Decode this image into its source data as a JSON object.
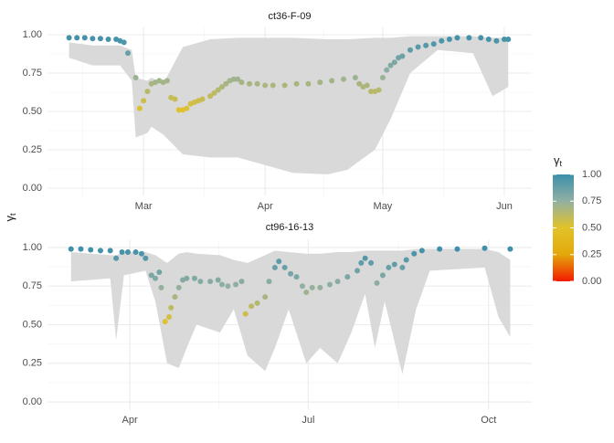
{
  "chart_data": [
    {
      "type": "scatter",
      "title": "ct36-F-09",
      "x": [
        -19,
        -17,
        -15,
        -13,
        -11,
        -9,
        -7,
        -6,
        -5,
        -4,
        -2,
        -1,
        0,
        1,
        2,
        3,
        4,
        5,
        6,
        7,
        8,
        9,
        10,
        11,
        12,
        13,
        14,
        15,
        17,
        18,
        19,
        20,
        21,
        22,
        23,
        24,
        25,
        27,
        29,
        31,
        33,
        36,
        39,
        42,
        45,
        48,
        51,
        54,
        55,
        56,
        57,
        58,
        59,
        60,
        61,
        62,
        63,
        64,
        65,
        66,
        68,
        70,
        72,
        74,
        76,
        78,
        80,
        83,
        86,
        88,
        90,
        92,
        93
      ],
      "values": [
        0.98,
        0.98,
        0.98,
        0.975,
        0.975,
        0.97,
        0.97,
        0.96,
        0.95,
        0.88,
        0.72,
        0.52,
        0.57,
        0.63,
        0.68,
        0.69,
        0.7,
        0.69,
        0.7,
        0.59,
        0.58,
        0.51,
        0.51,
        0.52,
        0.55,
        0.56,
        0.57,
        0.58,
        0.6,
        0.62,
        0.64,
        0.66,
        0.68,
        0.7,
        0.71,
        0.71,
        0.69,
        0.68,
        0.68,
        0.67,
        0.67,
        0.67,
        0.68,
        0.68,
        0.69,
        0.7,
        0.71,
        0.72,
        0.68,
        0.66,
        0.67,
        0.63,
        0.63,
        0.64,
        0.72,
        0.77,
        0.8,
        0.82,
        0.85,
        0.86,
        0.9,
        0.92,
        0.93,
        0.94,
        0.96,
        0.97,
        0.98,
        0.98,
        0.98,
        0.97,
        0.96,
        0.97,
        0.97
      ],
      "band": {
        "x": [
          -19,
          -13,
          -6,
          -3,
          -2,
          1,
          2,
          5,
          10,
          17,
          24,
          31,
          38,
          47,
          52,
          59,
          63,
          68,
          75,
          84,
          89,
          93
        ],
        "lower": [
          0.85,
          0.8,
          0.8,
          0.7,
          0.33,
          0.36,
          0.4,
          0.35,
          0.22,
          0.2,
          0.2,
          0.15,
          0.1,
          0.09,
          0.12,
          0.25,
          0.45,
          0.75,
          0.9,
          0.88,
          0.6,
          0.66
        ],
        "upper": [
          0.95,
          0.93,
          0.93,
          0.9,
          0.72,
          0.7,
          0.72,
          0.68,
          0.92,
          0.97,
          0.98,
          0.98,
          0.98,
          0.97,
          0.97,
          0.98,
          0.98,
          0.99,
          0.99,
          0.99,
          0.98,
          0.98
        ],
        "color": "#d9d9d9"
      },
      "xlim": [
        -24.5,
        99
      ],
      "xticks": [
        {
          "value": 0,
          "label": "Mar"
        },
        {
          "value": 31,
          "label": "Apr"
        },
        {
          "value": 61,
          "label": "May"
        },
        {
          "value": 92,
          "label": "Jun"
        }
      ],
      "ylim": [
        -0.05,
        1.05
      ],
      "yticks": [
        {
          "value": 0,
          "label": "0.00"
        },
        {
          "value": 0.25,
          "label": "0.25"
        },
        {
          "value": 0.5,
          "label": "0.50"
        },
        {
          "value": 0.75,
          "label": "0.75"
        },
        {
          "value": 1,
          "label": "1.00"
        }
      ],
      "grid": true
    },
    {
      "type": "scatter",
      "title": "ct96-16-13",
      "x": [
        -30,
        -25,
        -20,
        -15,
        -10,
        -7,
        -4,
        -1,
        3,
        6,
        8,
        11,
        13,
        15,
        16,
        18,
        20,
        21,
        23,
        25,
        27,
        29,
        33,
        36,
        41,
        45,
        47,
        50,
        54,
        57,
        59,
        62,
        65,
        69,
        71,
        74,
        76,
        79,
        82,
        85,
        88,
        90,
        93,
        97,
        102,
        106,
        111,
        116,
        118,
        120,
        123,
        126,
        129,
        132,
        135,
        139,
        141,
        145,
        149,
        158,
        167,
        181,
        194
      ],
      "values": [
        0.99,
        0.99,
        0.985,
        0.98,
        0.98,
        0.93,
        0.97,
        0.97,
        0.97,
        0.96,
        0.93,
        0.82,
        0.8,
        0.84,
        0.74,
        0.52,
        0.55,
        0.61,
        0.68,
        0.74,
        0.79,
        0.8,
        0.8,
        0.78,
        0.78,
        0.79,
        0.76,
        0.75,
        0.76,
        0.78,
        0.57,
        0.62,
        0.64,
        0.68,
        0.78,
        0.87,
        0.91,
        0.87,
        0.83,
        0.81,
        0.75,
        0.71,
        0.74,
        0.74,
        0.76,
        0.78,
        0.81,
        0.85,
        0.9,
        0.93,
        0.9,
        0.77,
        0.82,
        0.87,
        0.89,
        0.87,
        0.92,
        0.96,
        0.98,
        0.99,
        0.99,
        0.995,
        0.99
      ],
      "band": {
        "x": [
          -30,
          -10,
          -7,
          -3,
          8,
          13,
          19,
          25,
          29,
          34,
          46,
          53,
          60,
          69,
          74,
          81,
          90,
          97,
          106,
          113,
          120,
          125,
          130,
          139,
          146,
          153,
          181,
          188,
          194
        ],
        "lower": [
          0.78,
          0.8,
          0.4,
          0.82,
          0.85,
          0.65,
          0.25,
          0.22,
          0.35,
          0.5,
          0.45,
          0.6,
          0.3,
          0.2,
          0.35,
          0.6,
          0.25,
          0.35,
          0.25,
          0.45,
          0.7,
          0.35,
          0.65,
          0.18,
          0.6,
          0.85,
          0.87,
          0.55,
          0.42
        ],
        "upper": [
          0.97,
          0.95,
          0.95,
          0.97,
          0.97,
          0.95,
          0.9,
          0.96,
          0.97,
          0.96,
          0.95,
          0.92,
          0.9,
          0.95,
          0.98,
          0.97,
          0.96,
          0.96,
          0.97,
          0.97,
          0.98,
          0.98,
          0.98,
          0.98,
          0.99,
          0.99,
          0.99,
          0.97,
          0.92
        ],
        "color": "#d9d9d9"
      },
      "xlim": [
        -42,
        205
      ],
      "xticks": [
        {
          "value": 0,
          "label": "Apr"
        },
        {
          "value": 91,
          "label": "Jul"
        },
        {
          "value": 183,
          "label": "Oct"
        }
      ],
      "ylim": [
        -0.05,
        1.05
      ],
      "yticks": [
        {
          "value": 0,
          "label": "0.00"
        },
        {
          "value": 0.25,
          "label": "0.25"
        },
        {
          "value": 0.5,
          "label": "0.50"
        },
        {
          "value": 0.75,
          "label": "0.75"
        },
        {
          "value": 1,
          "label": "1.00"
        }
      ],
      "grid": true
    }
  ],
  "shared": {
    "y_label": {
      "symbol": "γ",
      "subscript": "t"
    },
    "colorbar": {
      "title": {
        "symbol": "γ",
        "subscript": "t"
      },
      "clim": [
        0,
        1
      ],
      "colors": [
        "#F21A00",
        "#E3A80C",
        "#E2C22A",
        "#92B0A2",
        "#3D8FAB"
      ],
      "ticks": [
        {
          "value": 0,
          "label": "0.00"
        },
        {
          "value": 0.25,
          "label": "0.25"
        },
        {
          "value": 0.5,
          "label": "0.50"
        },
        {
          "value": 0.75,
          "label": "0.75"
        },
        {
          "value": 1,
          "label": "1.00"
        }
      ]
    }
  }
}
